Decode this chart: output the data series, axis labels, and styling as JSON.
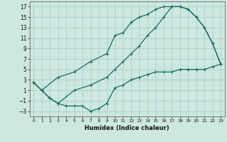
{
  "title": "",
  "xlabel": "Humidex (Indice chaleur)",
  "bg_color": "#cce8e0",
  "line_color": "#1a6b5a",
  "grid_color": "#aad4ca",
  "xlim": [
    -0.5,
    23.5
  ],
  "ylim": [
    -4.0,
    18.0
  ],
  "xticks": [
    0,
    1,
    2,
    3,
    4,
    5,
    6,
    7,
    8,
    9,
    10,
    11,
    12,
    13,
    14,
    15,
    16,
    17,
    18,
    19,
    20,
    21,
    22,
    23
  ],
  "yticks": [
    -3,
    -1,
    1,
    3,
    5,
    7,
    9,
    11,
    13,
    15,
    17
  ],
  "curve_upper": {
    "x": [
      0,
      1,
      3,
      5,
      7,
      9,
      10,
      11,
      12,
      13,
      14,
      15,
      16,
      17,
      18,
      19,
      20,
      21,
      22,
      23
    ],
    "y": [
      2.5,
      1.0,
      3.5,
      4.5,
      6.5,
      8.0,
      11.5,
      12.0,
      14.0,
      15.0,
      15.5,
      16.5,
      17.0,
      17.0,
      17.0,
      16.5,
      15.0,
      13.0,
      10.0,
      6.0
    ]
  },
  "curve_lower": {
    "x": [
      0,
      1,
      2,
      3,
      4,
      5,
      6,
      7,
      8,
      9,
      10,
      11,
      12,
      13,
      14,
      15,
      16,
      17,
      18,
      19,
      20,
      21,
      22,
      23
    ],
    "y": [
      2.5,
      1.0,
      -0.5,
      -1.5,
      -2.0,
      -2.0,
      -2.0,
      -3.0,
      -2.5,
      -1.5,
      1.5,
      2.0,
      3.0,
      3.5,
      4.0,
      4.5,
      4.5,
      4.5,
      5.0,
      5.0,
      5.0,
      5.0,
      5.5,
      6.0
    ]
  },
  "curve_mid": {
    "x": [
      0,
      1,
      2,
      3,
      5,
      7,
      9,
      10,
      11,
      12,
      13,
      14,
      15,
      16,
      17,
      18,
      19,
      20,
      21,
      22,
      23
    ],
    "y": [
      2.5,
      1.0,
      -0.5,
      -1.5,
      1.0,
      2.0,
      3.5,
      5.0,
      6.5,
      8.0,
      9.5,
      11.5,
      13.0,
      15.0,
      17.0,
      17.0,
      16.5,
      15.0,
      13.0,
      10.0,
      6.0
    ]
  },
  "xlabel_fontsize": 6.0,
  "tick_fontsize_x": 4.5,
  "tick_fontsize_y": 5.5,
  "linewidth": 0.9,
  "markersize": 3.0
}
